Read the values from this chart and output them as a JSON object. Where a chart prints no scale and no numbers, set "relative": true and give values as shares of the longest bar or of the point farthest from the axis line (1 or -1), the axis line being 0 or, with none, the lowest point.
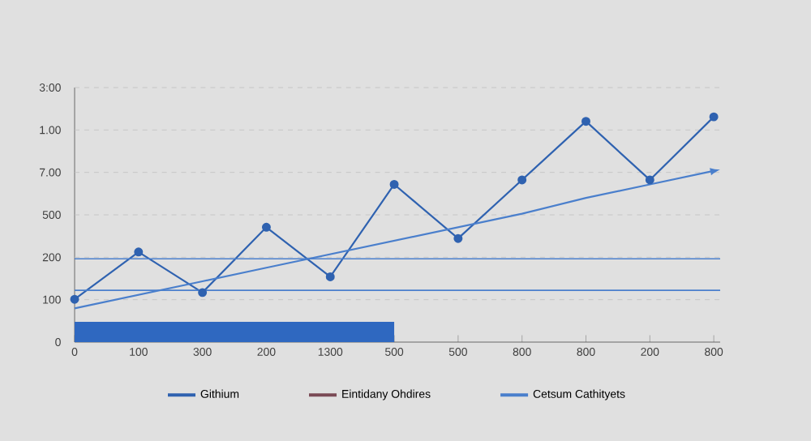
{
  "chart_data": {
    "type": "line",
    "relative": true,
    "categories": [
      "0",
      "100",
      "300",
      "200",
      "1300",
      "500",
      "500",
      "800",
      "800",
      "200",
      "800"
    ],
    "series": [
      {
        "name": "Githium",
        "color": "#2f62b0",
        "values": [
          0.19,
          0.4,
          0.22,
          0.51,
          0.29,
          0.7,
          0.46,
          0.72,
          0.98,
          0.72,
          1
        ]
      },
      {
        "name": "Eintidany Ohdires",
        "color": "#7a4a55",
        "values": [
          null,
          null,
          null,
          null,
          null,
          null,
          null,
          null,
          null,
          null,
          null
        ]
      },
      {
        "name": "Cetsum Cathityets",
        "color": "#4a7fcc",
        "values": [
          0.15,
          0.21,
          0.27,
          0.33,
          0.39,
          0.45,
          0.51,
          0.57,
          0.64,
          0.7,
          0.76
        ],
        "marker": "none"
      },
      {
        "type": "area",
        "color": "#2f68c0",
        "values": [
          0.09,
          0.09,
          0.09,
          0.09,
          0.09,
          0.09,
          null,
          null,
          null,
          null,
          null
        ],
        "marker": "none"
      }
    ],
    "ref_lines": [
      {
        "axis": "y",
        "value": 0.37,
        "color": "#4a7fcc"
      },
      {
        "axis": "y",
        "value": 0.23,
        "color": "#4a7fcc"
      }
    ],
    "annotations": [
      "0",
      "100",
      "200",
      "500",
      "7.00",
      "1.00",
      "3:00"
    ],
    "grid": "y",
    "legend": "bottom",
    "marker": "circle"
  }
}
